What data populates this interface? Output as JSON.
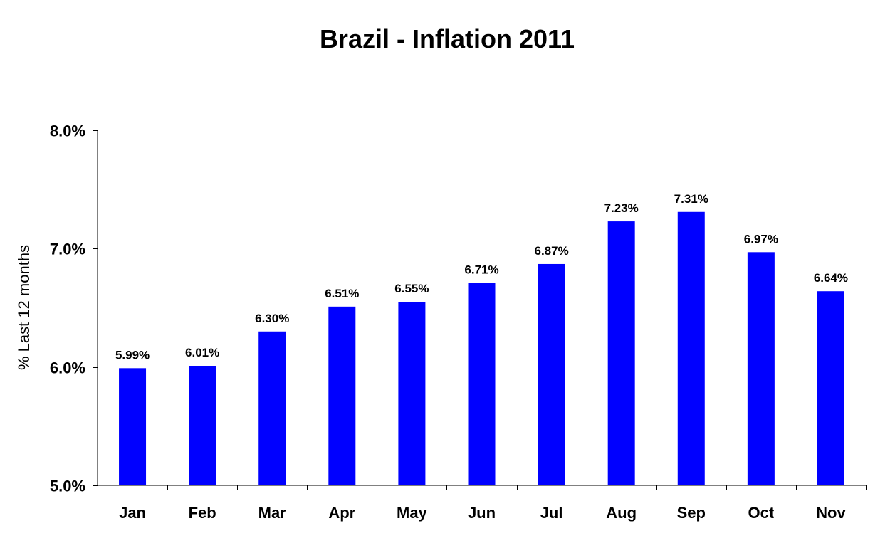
{
  "chart_data": {
    "type": "bar",
    "title": "Brazil - Inflation 2011",
    "ylabel": "% Last 12 months",
    "xlabel": "",
    "ylim": [
      5.0,
      8.0
    ],
    "yticks": [
      5.0,
      6.0,
      7.0,
      8.0
    ],
    "ytick_labels": [
      "5.0%",
      "6.0%",
      "7.0%",
      "8.0%"
    ],
    "categories": [
      "Jan",
      "Feb",
      "Mar",
      "Apr",
      "May",
      "Jun",
      "Jul",
      "Aug",
      "Sep",
      "Oct",
      "Nov"
    ],
    "values": [
      5.99,
      6.01,
      6.3,
      6.51,
      6.55,
      6.71,
      6.87,
      7.23,
      7.31,
      6.97,
      6.64
    ],
    "data_labels": [
      "5.99%",
      "6.01%",
      "6.30%",
      "6.51%",
      "6.55%",
      "6.71%",
      "6.87%",
      "7.23%",
      "7.31%",
      "6.97%",
      "6.64%"
    ],
    "bar_color": "#0000FF",
    "grid": false,
    "legend": "none"
  }
}
